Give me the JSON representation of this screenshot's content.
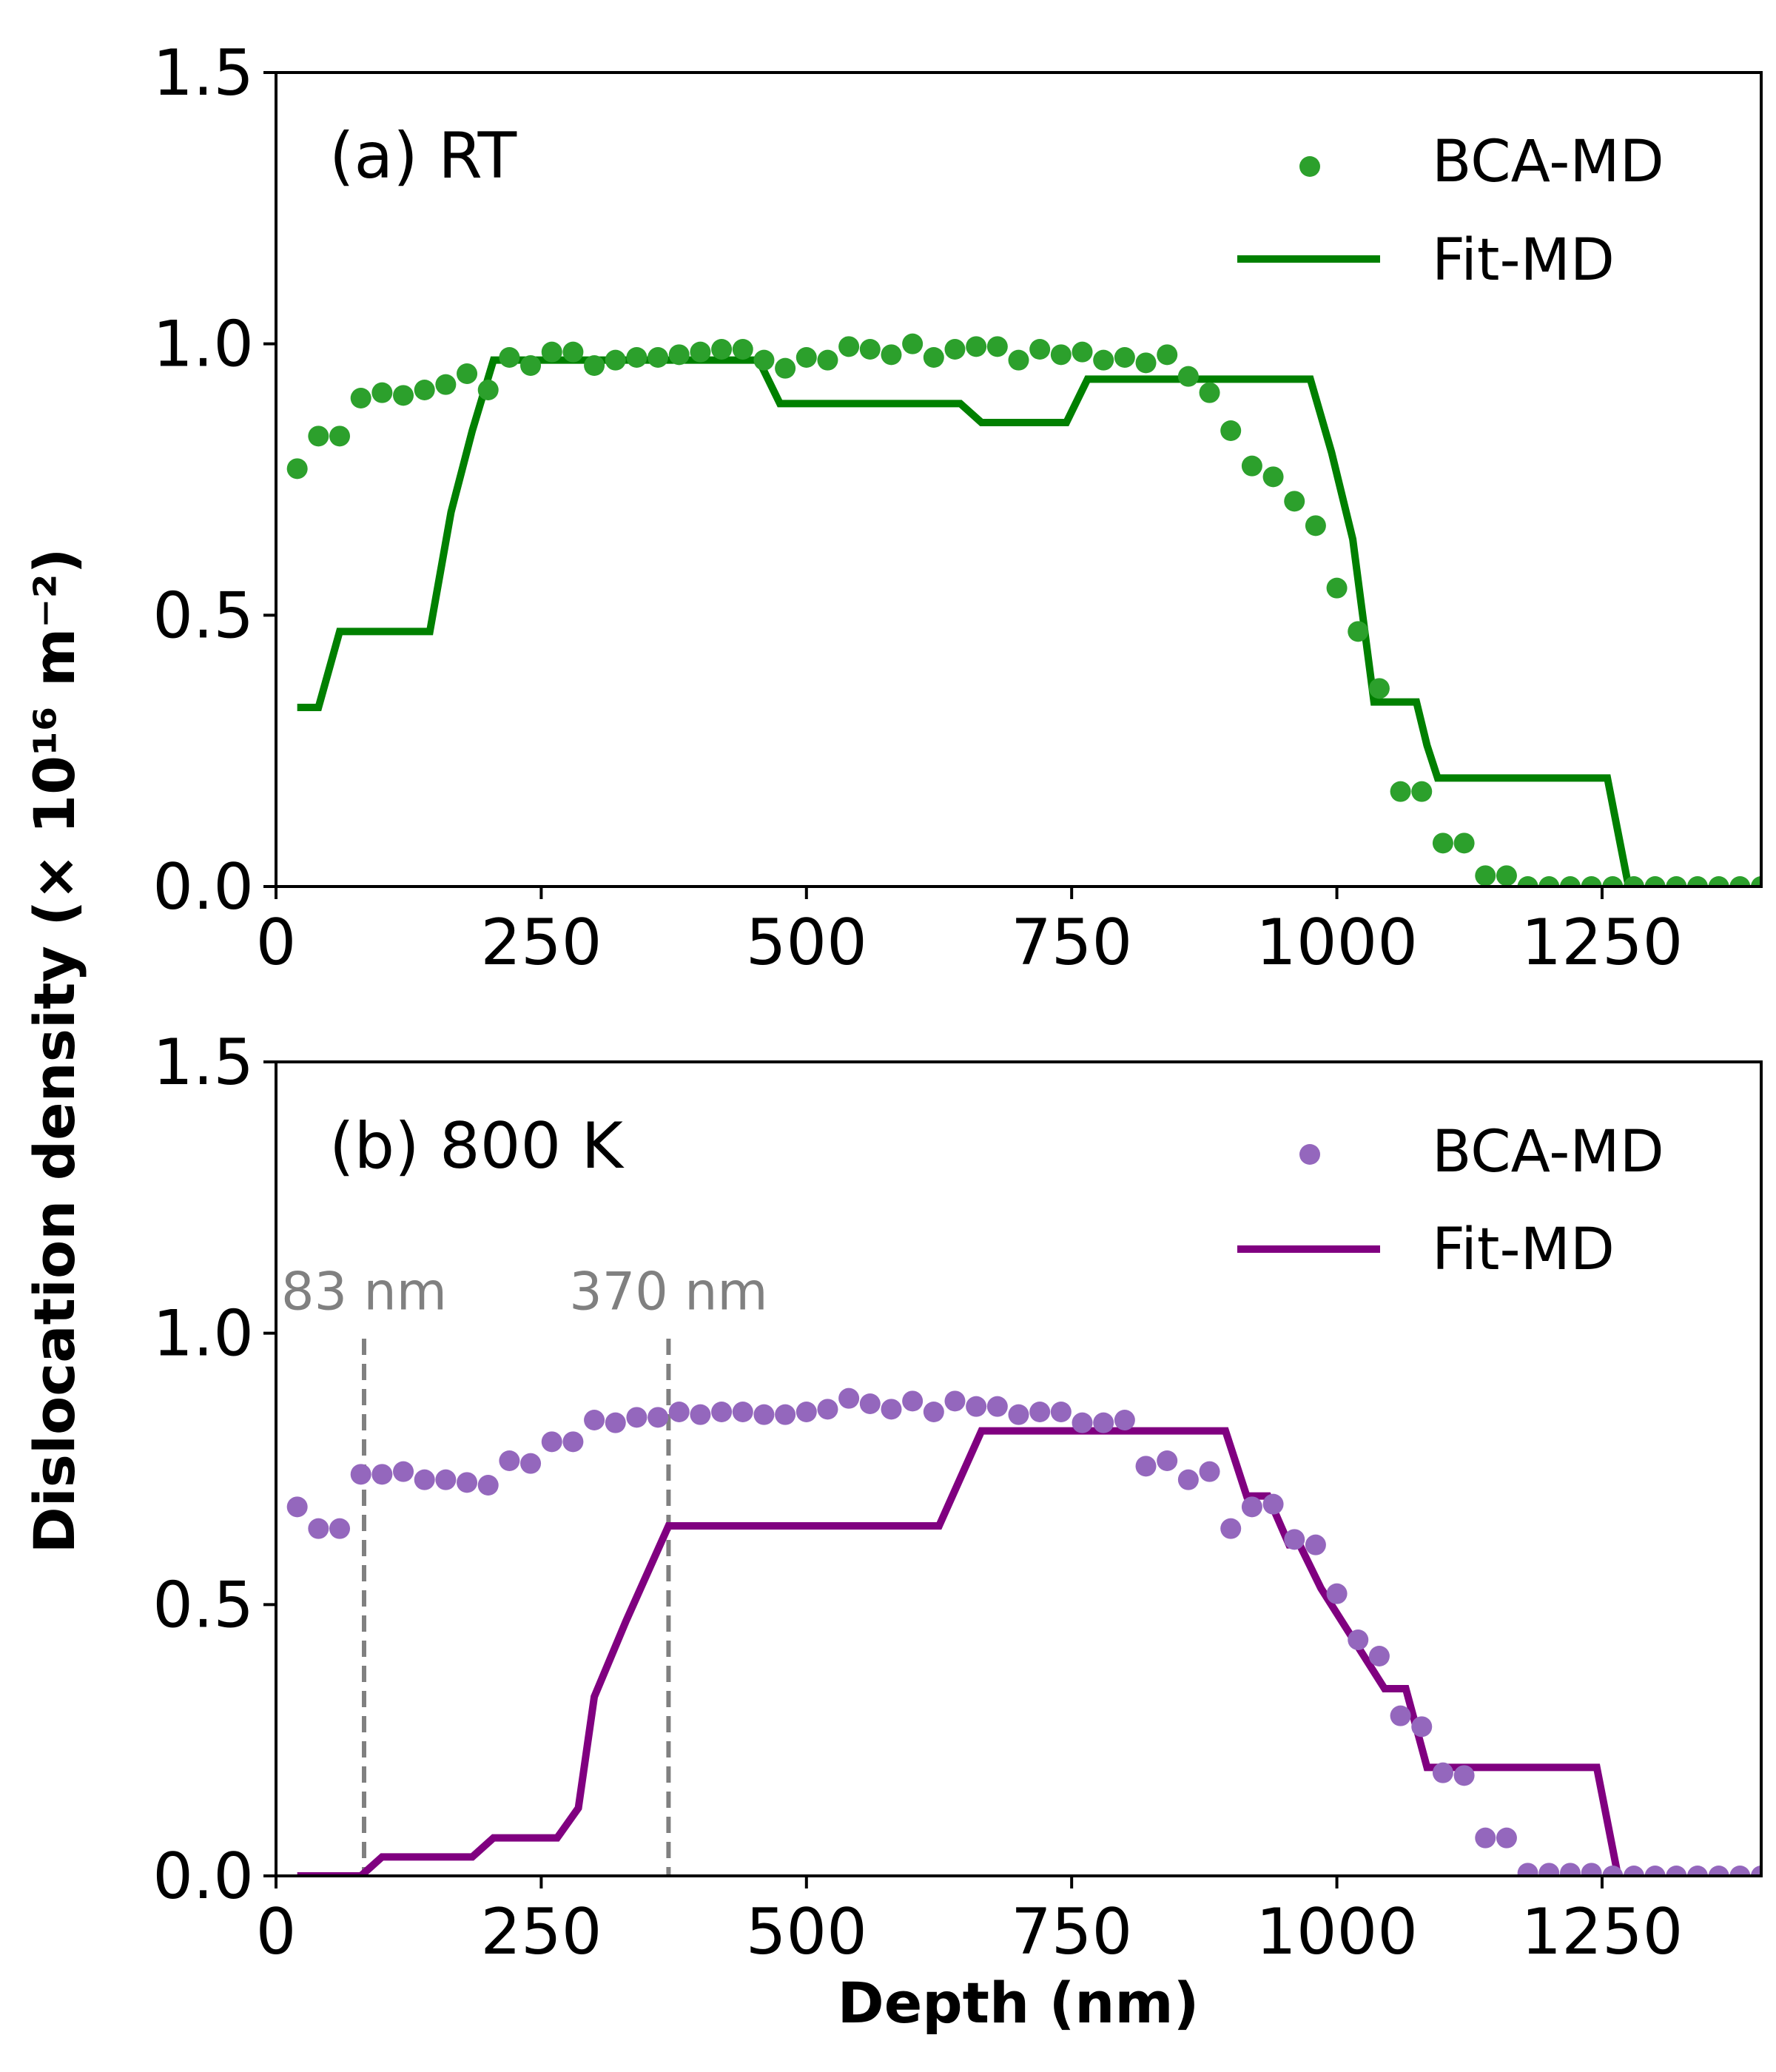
{
  "chart_data": [
    {
      "type": "scatter",
      "panel_label": "(a) RT",
      "xlim": [
        0,
        1400
      ],
      "ylim": [
        0,
        1.5
      ],
      "x_ticks": [
        "0",
        "250",
        "500",
        "750",
        "1000",
        "1250"
      ],
      "y_ticks": [
        "0.0",
        "0.5",
        "1.0",
        "1.5"
      ],
      "xlabel": "",
      "ylabel": "Dislocation density (× 10¹⁶ m⁻²)",
      "grid": false,
      "legend_position": "top-right",
      "series": [
        {
          "name": "BCA-MD",
          "kind": "points",
          "color": "#2ca02c",
          "x": [
            20,
            40,
            60,
            80,
            100,
            120,
            140,
            160,
            180,
            200,
            220,
            240,
            260,
            280,
            300,
            320,
            340,
            360,
            380,
            400,
            420,
            440,
            460,
            480,
            500,
            520,
            540,
            560,
            580,
            600,
            620,
            640,
            660,
            680,
            700,
            720,
            740,
            760,
            780,
            800,
            820,
            840,
            860,
            880,
            900,
            920,
            940,
            960,
            980,
            1000,
            1020,
            1040,
            1060,
            1080,
            1100,
            1120,
            1140,
            1160,
            1180,
            1200,
            1220,
            1240,
            1260,
            1280,
            1300,
            1320,
            1340,
            1360,
            1380,
            1400
          ],
          "y": [
            0.77,
            0.83,
            0.83,
            0.9,
            0.91,
            0.905,
            0.915,
            0.925,
            0.945,
            0.915,
            0.975,
            0.96,
            0.985,
            0.985,
            0.96,
            0.97,
            0.975,
            0.975,
            0.98,
            0.985,
            0.99,
            0.99,
            0.97,
            0.955,
            0.975,
            0.97,
            0.995,
            0.99,
            0.98,
            1.0,
            0.975,
            0.99,
            0.995,
            0.995,
            0.97,
            0.99,
            0.98,
            0.985,
            0.97,
            0.975,
            0.965,
            0.98,
            0.94,
            0.91,
            0.84,
            0.775,
            0.755,
            0.71,
            0.665,
            0.55,
            0.47,
            0.365,
            0.175,
            0.175,
            0.08,
            0.08,
            0.02,
            0.02,
            0.0,
            0.0,
            0.0,
            0.0,
            0.0,
            0.0,
            0.0,
            0.0,
            0.0,
            0.0,
            0.0,
            0.0
          ]
        },
        {
          "name": "Fit-MD",
          "kind": "line",
          "color": "#008000",
          "x": [
            20,
            40,
            60,
            80,
            100,
            120,
            140,
            145,
            165,
            185,
            205,
            225,
            245,
            455,
            475,
            495,
            645,
            665,
            685,
            745,
            765,
            785,
            975,
            995,
            1015,
            1035,
            1055,
            1065,
            1075,
            1085,
            1095,
            1255,
            1275,
            1285
          ],
          "y": [
            0.33,
            0.33,
            0.47,
            0.47,
            0.47,
            0.47,
            0.47,
            0.47,
            0.69,
            0.84,
            0.97,
            0.97,
            0.97,
            0.97,
            0.89,
            0.89,
            0.89,
            0.855,
            0.855,
            0.855,
            0.935,
            0.935,
            0.935,
            0.8,
            0.64,
            0.34,
            0.34,
            0.34,
            0.34,
            0.26,
            0.2,
            0.2,
            0.0,
            0.0
          ]
        }
      ]
    },
    {
      "type": "scatter",
      "panel_label": "(b) 800 K",
      "xlim": [
        0,
        1400
      ],
      "ylim": [
        0,
        1.5
      ],
      "x_ticks": [
        "0",
        "250",
        "500",
        "750",
        "1000",
        "1250"
      ],
      "y_ticks": [
        "0.0",
        "0.5",
        "1.0",
        "1.5"
      ],
      "xlabel": "Depth (nm)",
      "ylabel": "Dislocation density (× 10¹⁶ m⁻²)",
      "grid": false,
      "legend_position": "top-right",
      "annotations": [
        {
          "x": 83,
          "text": "83 nm"
        },
        {
          "x": 370,
          "text": "370 nm"
        }
      ],
      "series": [
        {
          "name": "BCA-MD",
          "kind": "points",
          "color": "#9467bd",
          "x": [
            20,
            40,
            60,
            80,
            100,
            120,
            140,
            160,
            180,
            200,
            220,
            240,
            260,
            280,
            300,
            320,
            340,
            360,
            380,
            400,
            420,
            440,
            460,
            480,
            500,
            520,
            540,
            560,
            580,
            600,
            620,
            640,
            660,
            680,
            700,
            720,
            740,
            760,
            780,
            800,
            820,
            840,
            860,
            880,
            900,
            920,
            940,
            960,
            980,
            1000,
            1020,
            1040,
            1060,
            1080,
            1100,
            1120,
            1140,
            1160,
            1180,
            1200,
            1220,
            1240,
            1260,
            1280,
            1300,
            1320,
            1340,
            1360,
            1380,
            1400
          ],
          "y": [
            0.68,
            0.64,
            0.64,
            0.74,
            0.74,
            0.745,
            0.73,
            0.73,
            0.725,
            0.72,
            0.765,
            0.76,
            0.8,
            0.8,
            0.84,
            0.835,
            0.845,
            0.845,
            0.855,
            0.85,
            0.855,
            0.855,
            0.85,
            0.85,
            0.855,
            0.86,
            0.88,
            0.87,
            0.86,
            0.875,
            0.855,
            0.875,
            0.865,
            0.865,
            0.85,
            0.855,
            0.855,
            0.835,
            0.835,
            0.84,
            0.755,
            0.765,
            0.73,
            0.745,
            0.64,
            0.68,
            0.685,
            0.62,
            0.61,
            0.52,
            0.435,
            0.405,
            0.295,
            0.275,
            0.19,
            0.185,
            0.07,
            0.07,
            0.005,
            0.005,
            0.005,
            0.005,
            0.0,
            0.0,
            0.0,
            0.0,
            0.0,
            0.0,
            0.0,
            0.0
          ]
        },
        {
          "name": "Fit-MD",
          "kind": "line",
          "color": "#800080",
          "x": [
            20,
            80,
            100,
            185,
            205,
            265,
            285,
            300,
            330,
            370,
            625,
            665,
            895,
            915,
            935,
            955,
            965,
            985,
            1045,
            1065,
            1085,
            1245,
            1265
          ],
          "y": [
            0.0,
            0.0,
            0.035,
            0.035,
            0.07,
            0.07,
            0.125,
            0.33,
            0.47,
            0.645,
            0.645,
            0.82,
            0.82,
            0.7,
            0.7,
            0.61,
            0.61,
            0.53,
            0.345,
            0.345,
            0.2,
            0.2,
            0.0
          ]
        }
      ]
    }
  ]
}
